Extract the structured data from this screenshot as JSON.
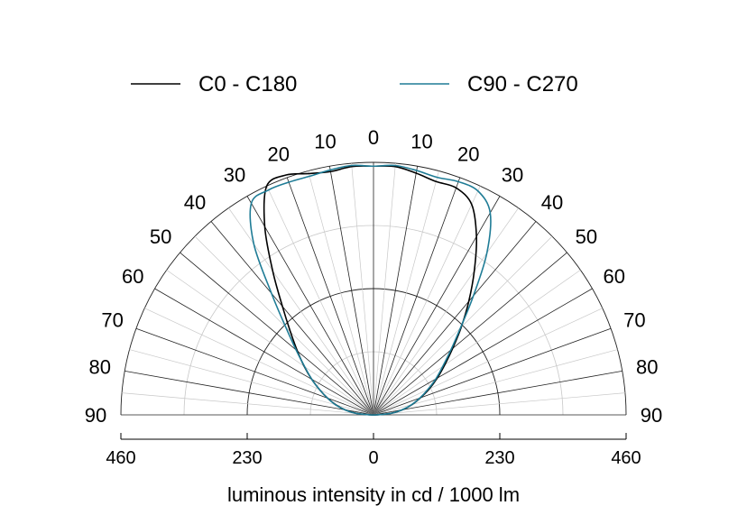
{
  "chart_data": {
    "type": "polar",
    "xlabel": "luminous intensity in cd / 1000 lm",
    "rmax": 460,
    "ring_step": 115,
    "ring_major": [
      230,
      460
    ],
    "angle_step": 5,
    "angle_labels": [
      "0",
      "10",
      "20",
      "30",
      "40",
      "50",
      "60",
      "70",
      "80",
      "90"
    ],
    "axis_ticks": [
      "460",
      "230",
      "0",
      "230",
      "460"
    ],
    "legend_position": "top",
    "series": [
      {
        "name": "C0 - C180",
        "color": "#000000",
        "angles": [
          0,
          5,
          10,
          15,
          20,
          25,
          30,
          35,
          40,
          45,
          50,
          55,
          60,
          65,
          70,
          75,
          80,
          85,
          90
        ],
        "left_values": [
          453,
          454,
          450,
          455,
          465,
          460,
          396,
          320,
          258,
          214,
          181,
          154,
          130,
          108,
          89,
          71,
          52,
          31,
          5
        ],
        "right_values": [
          453,
          454,
          447,
          440,
          440,
          423,
          375,
          320,
          270,
          226,
          188,
          158,
          134,
          112,
          91,
          73,
          54,
          32,
          5
        ]
      },
      {
        "name": "C90 - C270",
        "color": "#1f7c96",
        "angles": [
          0,
          5,
          10,
          15,
          20,
          25,
          30,
          35,
          40,
          45,
          50,
          55,
          60,
          65,
          70,
          75,
          80,
          85,
          90
        ],
        "left_values": [
          453,
          456,
          453,
          450,
          451,
          452,
          445,
          380,
          289,
          226,
          184,
          153,
          130,
          108,
          89,
          72,
          53,
          32,
          5
        ],
        "right_values": [
          453,
          456,
          452,
          448,
          452,
          450,
          425,
          360,
          283,
          224,
          184,
          154,
          131,
          109,
          90,
          72,
          53,
          32,
          5
        ]
      }
    ]
  },
  "colors": {
    "major_grid": "#222222",
    "minor_grid": "#c8c8c8"
  }
}
